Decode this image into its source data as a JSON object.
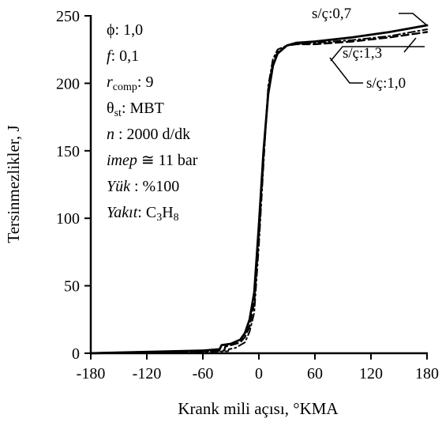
{
  "chart_data": {
    "type": "line",
    "xlabel": "Krank mili açısı, °KMA",
    "ylabel": "Tersinmezlikler, J",
    "xlim": [
      -180,
      180
    ],
    "ylim": [
      0,
      250
    ],
    "x_ticks": [
      "-180",
      "-120",
      "-60",
      "0",
      "60",
      "120",
      "180"
    ],
    "y_ticks": [
      "0",
      "50",
      "100",
      "150",
      "200",
      "250"
    ],
    "grid": false,
    "series": [
      {
        "name": "s/ç:0,7",
        "style": "solid",
        "points": [
          [
            -180,
            0
          ],
          [
            -120,
            1
          ],
          [
            -60,
            2
          ],
          [
            -42,
            3
          ],
          [
            -40,
            6
          ],
          [
            -30,
            7
          ],
          [
            -20,
            10
          ],
          [
            -15,
            15
          ],
          [
            -10,
            25
          ],
          [
            -5,
            45
          ],
          [
            0,
            95
          ],
          [
            5,
            150
          ],
          [
            10,
            192
          ],
          [
            15,
            213
          ],
          [
            20,
            222
          ],
          [
            30,
            228
          ],
          [
            40,
            230
          ],
          [
            60,
            231
          ],
          [
            100,
            234
          ],
          [
            140,
            238
          ],
          [
            180,
            243
          ]
        ]
      },
      {
        "name": "s/ç:1,0",
        "style": "dashed",
        "points": [
          [
            -180,
            0
          ],
          [
            -120,
            1
          ],
          [
            -60,
            1.5
          ],
          [
            -37,
            2
          ],
          [
            -36,
            5
          ],
          [
            -30,
            6
          ],
          [
            -20,
            8
          ],
          [
            -15,
            12
          ],
          [
            -10,
            20
          ],
          [
            -5,
            38
          ],
          [
            0,
            88
          ],
          [
            5,
            145
          ],
          [
            10,
            195
          ],
          [
            15,
            215
          ],
          [
            20,
            223
          ],
          [
            30,
            228
          ],
          [
            40,
            229
          ],
          [
            60,
            229
          ],
          [
            100,
            231
          ],
          [
            140,
            234
          ],
          [
            180,
            238
          ]
        ]
      },
      {
        "name": "s/ç:1,3",
        "style": "dashdot",
        "points": [
          [
            -180,
            0
          ],
          [
            -120,
            0.5
          ],
          [
            -60,
            1
          ],
          [
            -33,
            1.5
          ],
          [
            -32,
            3
          ],
          [
            -25,
            4
          ],
          [
            -20,
            6
          ],
          [
            -15,
            8
          ],
          [
            -10,
            16
          ],
          [
            -5,
            30
          ],
          [
            0,
            80
          ],
          [
            5,
            140
          ],
          [
            10,
            198
          ],
          [
            15,
            218
          ],
          [
            20,
            225
          ],
          [
            30,
            228
          ],
          [
            40,
            229
          ],
          [
            60,
            230
          ],
          [
            100,
            232
          ],
          [
            140,
            235
          ],
          [
            180,
            240
          ]
        ]
      }
    ],
    "annotations": [
      {
        "text": "ϕ: 1,0"
      },
      {
        "italic": "f",
        "text": ": 0,1"
      },
      {
        "italic": "r",
        "sub": "comp",
        "text": ": 9"
      },
      {
        "text": "θ",
        "sub": "st",
        "rest": ": MBT"
      },
      {
        "italic": "n",
        "text": " : 2000 d/dk"
      },
      {
        "italic": "imep",
        "text": " ≅ 11 bar"
      },
      {
        "italic": "Yük",
        "text": " : %100"
      },
      {
        "italic": "Yakıt",
        "text": ": C",
        "sub1": "3",
        "mid": "H",
        "sub2": "8"
      }
    ]
  }
}
